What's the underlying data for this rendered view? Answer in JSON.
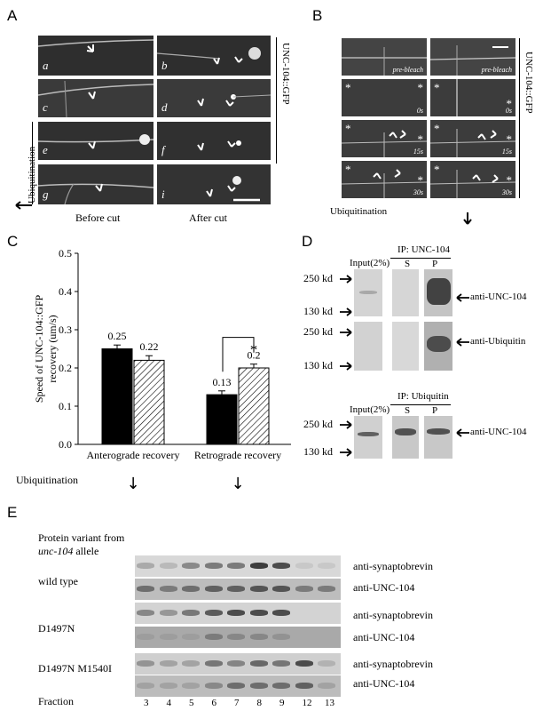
{
  "panels": {
    "A": {
      "letter": "A",
      "side_label": "UNC-104::GFP",
      "row_label": "Ubiquitination",
      "sublabels": [
        "a",
        "b",
        "c",
        "d",
        "e",
        "f",
        "g",
        "i"
      ],
      "bottom_labels": {
        "before": "Before cut",
        "after": "After cut"
      }
    },
    "B": {
      "letter": "B",
      "side_label": "UNC-104::GFP",
      "bottom_label": "Ubiquitination",
      "frame_tags": [
        "pre-bleach",
        "pre-bleach",
        "0s",
        "0s",
        "15s",
        "15s",
        "30s",
        "30s"
      ]
    },
    "C": {
      "letter": "C",
      "bottom_label": "Ubiquitination"
    },
    "D": {
      "letter": "D",
      "top": {
        "input_label": "Input(2%)",
        "ip_label": "IP: UNC-104",
        "lanes": [
          "S",
          "P"
        ],
        "markers": [
          "250 kd",
          "130 kd"
        ],
        "right_label": "anti-UNC-104"
      },
      "middle": {
        "markers": [
          "250 kd",
          "130 kd"
        ],
        "right_label": "anti-Ubiquitin"
      },
      "bottom": {
        "input_label": "Input(2%)",
        "ip_label": "IP: Ubiquitin",
        "lanes": [
          "S",
          "P"
        ],
        "markers": [
          "250 kd",
          "130 kd"
        ],
        "right_label": "anti-UNC-104"
      }
    },
    "E": {
      "letter": "E",
      "header_line1": "Protein variant from",
      "header_line2": "unc-104",
      "header_line2_suffix": " allele",
      "rows": [
        {
          "variant": "wild type",
          "labels": [
            "anti-synaptobrevin",
            "anti-UNC-104"
          ]
        },
        {
          "variant": "D1497N",
          "labels": [
            "anti-synaptobrevin",
            "anti-UNC-104"
          ]
        },
        {
          "variant": "D1497N M1540I",
          "labels": [
            "anti-synaptobrevin",
            "anti-UNC-104"
          ]
        }
      ],
      "fraction_label": "Fraction",
      "fractions": [
        "3",
        "4",
        "5",
        "6",
        "7",
        "8",
        "9",
        "12",
        "13"
      ]
    }
  },
  "chart_data": {
    "type": "bar",
    "ylabel": "Speed of UNC-104::GFP recovery (um/s)",
    "ylim": [
      0,
      0.5
    ],
    "yticks": [
      "0.0",
      "0.1",
      "0.2",
      "0.3",
      "0.4",
      "0.5"
    ],
    "categories": [
      "Anterograde recovery",
      "Retrograde recovery"
    ],
    "series": [
      {
        "values": [
          0.25,
          0.13
        ],
        "errors": [
          0.01,
          0.01
        ],
        "fill": "#000000"
      },
      {
        "values": [
          0.22,
          0.2
        ],
        "errors": [
          0.012,
          0.01
        ],
        "fill": "hatched"
      }
    ],
    "value_labels": [
      [
        "0.25",
        "0.13"
      ],
      [
        "0.22",
        "0.2"
      ]
    ],
    "significance": {
      "category": "Retrograde recovery",
      "symbol": "*"
    },
    "below_arrows": [
      "↓",
      "↓"
    ]
  }
}
